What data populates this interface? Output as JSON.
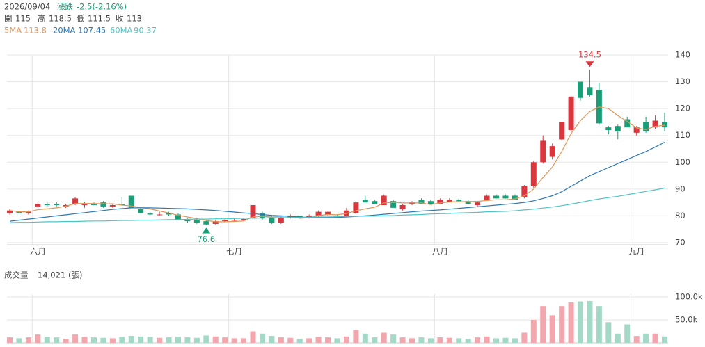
{
  "chart_data": {
    "type": "candlestick",
    "quote": {
      "date": "2026/09/04",
      "change_label": "漲跌",
      "change": "-2.5(-2.16%)",
      "open_label": "開",
      "high_label": "高",
      "low_label": "低",
      "close_label": "收"
    },
    "up_color": "#d9363e",
    "down_color": "#1a9e78",
    "up_volume_color": "#f1a7ad",
    "down_volume_color": "#a3d9c6",
    "categories": [
      null,
      null,
      null,
      "六月",
      null,
      null,
      null,
      null,
      null,
      null,
      null,
      null,
      null,
      null,
      null,
      null,
      null,
      null,
      null,
      null,
      null,
      null,
      null,
      null,
      "七月",
      null,
      null,
      null,
      null,
      null,
      null,
      null,
      null,
      null,
      null,
      null,
      null,
      null,
      null,
      null,
      null,
      null,
      null,
      null,
      null,
      null,
      "八月",
      null,
      null,
      null,
      null,
      null,
      null,
      null,
      null,
      null,
      null,
      null,
      null,
      null,
      null,
      null,
      null,
      null,
      null,
      null,
      null,
      "九月",
      null,
      null,
      null
    ],
    "open": [
      81,
      81.5,
      81,
      83.5,
      84.5,
      84.5,
      83.5,
      84.5,
      84,
      84.5,
      85,
      83.5,
      84.5,
      87.5,
      82.5,
      81,
      80.5,
      81,
      80.5,
      78.5,
      78.5,
      78,
      77,
      78,
      78.2,
      78.3,
      79,
      81,
      79.5,
      77.5,
      79.5,
      80,
      79.5,
      80,
      80.5,
      80,
      79.5,
      81,
      86,
      85.5,
      84,
      85.5,
      82.5,
      84.5,
      86,
      85.5,
      84.5,
      85,
      86,
      85.5,
      84,
      86,
      87.5,
      87.5,
      87.5,
      87,
      91,
      100,
      102,
      108.5,
      112,
      130,
      128,
      127,
      113,
      113.5,
      116,
      111,
      115,
      113,
      115
    ],
    "high": [
      82.5,
      82,
      82,
      85,
      85,
      85,
      84.5,
      87,
      85,
      85,
      85.5,
      84.5,
      87,
      87.5,
      83,
      81.5,
      81.5,
      81.5,
      81,
      79,
      79,
      78.5,
      78.5,
      79,
      79,
      79,
      85,
      81.5,
      80,
      80,
      80.5,
      80,
      80.5,
      82,
      81.5,
      80.5,
      83,
      85.5,
      87.5,
      86,
      88,
      86,
      84.5,
      85.5,
      86.5,
      86,
      86.5,
      86.5,
      86.5,
      86,
      85.5,
      88,
      88,
      88,
      88,
      91.5,
      100.5,
      110,
      107,
      115,
      124.5,
      130,
      134.5,
      129.5,
      113.5,
      114,
      117,
      113.5,
      117,
      117.5,
      118.5
    ],
    "low": [
      80.5,
      80.5,
      80.5,
      83,
      83.5,
      83.5,
      83,
      84,
      83,
      84,
      83,
      83,
      84,
      83,
      81,
      80,
      80,
      80,
      78.5,
      77.5,
      77,
      76.6,
      76.8,
      77.5,
      78,
      78,
      78.5,
      78.5,
      77,
      77,
      79,
      79,
      79,
      79.5,
      80,
      79.5,
      79.5,
      80.5,
      85,
      84.5,
      84,
      83,
      82,
      84,
      84.5,
      84.5,
      84.5,
      85,
      85.5,
      84.5,
      83.5,
      85.5,
      86.5,
      86.5,
      86,
      86.5,
      90.5,
      99.5,
      101,
      108,
      111.5,
      123,
      124.5,
      114,
      110.5,
      108.5,
      113,
      110,
      111,
      112.5,
      111.5
    ],
    "close": [
      82,
      81,
      81.5,
      84.5,
      84,
      84,
      84,
      86.5,
      84.5,
      84,
      83.5,
      84,
      84,
      83,
      81,
      80.5,
      80.5,
      80.5,
      78.5,
      78,
      77.5,
      76.8,
      78,
      78.5,
      78.5,
      78.8,
      84,
      79,
      77.5,
      79.5,
      80,
      79.5,
      80,
      81.5,
      81.5,
      79.5,
      82,
      85,
      85,
      84.5,
      87.5,
      83,
      84,
      85,
      84.5,
      84.5,
      86,
      86,
      85.5,
      84.5,
      85,
      87.5,
      86.5,
      86.5,
      86,
      91,
      100,
      108,
      106,
      115,
      124.5,
      124,
      125,
      114.5,
      112,
      111.5,
      113,
      113,
      111.5,
      115.5,
      113
    ],
    "volume": [
      12,
      10,
      12,
      18,
      13,
      12,
      9,
      18,
      13,
      12,
      11,
      10,
      13,
      15,
      14,
      13,
      11,
      12,
      13,
      12,
      11,
      16,
      14,
      12,
      10,
      10,
      25,
      20,
      15,
      12,
      11,
      9,
      10,
      13,
      12,
      10,
      14,
      28,
      20,
      12,
      22,
      18,
      12,
      10,
      12,
      10,
      12,
      11,
      10,
      9,
      12,
      14,
      10,
      11,
      10,
      22,
      50,
      80,
      60,
      80,
      88,
      90,
      91,
      80,
      45,
      20,
      40,
      15,
      20,
      20,
      14.021
    ],
    "volume_title": "成交量",
    "volume_label": "14,021",
    "volume_unit": "(張)",
    "ma": [
      {
        "name": "5MA",
        "color": "#e0965a",
        "values": [
          82,
          81.5,
          81.5,
          82.3,
          82.6,
          83,
          83.6,
          84.6,
          84.6,
          84.6,
          84.5,
          84.5,
          84,
          83.7,
          83.1,
          82.6,
          81.8,
          81.1,
          80.2,
          79.6,
          79,
          78.3,
          77.8,
          77.8,
          77.9,
          78.1,
          79.6,
          79.8,
          79.6,
          79.8,
          80,
          79.1,
          79.3,
          80.1,
          80.5,
          80.4,
          80.9,
          81.9,
          82.6,
          83.2,
          84.8,
          85,
          84.8,
          84.8,
          84.8,
          84.2,
          84.8,
          85.2,
          85.3,
          85.3,
          85.4,
          85.7,
          86,
          86,
          86.3,
          87.5,
          90,
          94.3,
          98.2,
          104,
          110.7,
          115.5,
          118.9,
          120.6,
          120,
          117.4,
          115.2,
          112.8,
          112.2,
          113.4,
          113.8
        ]
      },
      {
        "name": "20MA",
        "color": "#2b78b5",
        "values": [
          78,
          78.4,
          78.8,
          79.2,
          79.6,
          80,
          80.4,
          80.8,
          81.2,
          81.6,
          82,
          82.4,
          82.7,
          83,
          83,
          83,
          82.9,
          82.8,
          82.7,
          82.6,
          82.4,
          82.2,
          82,
          81.7,
          81.4,
          81.1,
          80.8,
          80.5,
          80.2,
          80,
          79.8,
          79.6,
          79.4,
          79.3,
          79.3,
          79.4,
          79.6,
          79.8,
          80,
          80.3,
          80.6,
          80.9,
          81.2,
          81.5,
          81.8,
          82,
          82.2,
          82.5,
          82.8,
          83.1,
          83.4,
          83.7,
          84,
          84.3,
          84.6,
          85,
          85.6,
          86.5,
          87.5,
          89,
          91,
          93,
          95,
          96.5,
          98,
          99.5,
          101,
          102.5,
          104,
          105.7,
          107.45
        ]
      },
      {
        "name": "60MA",
        "color": "#4fc4c6",
        "values": [
          77.5,
          77.6,
          77.6,
          77.7,
          77.8,
          77.8,
          77.9,
          77.9,
          78,
          78.1,
          78.1,
          78.2,
          78.3,
          78.3,
          78.4,
          78.4,
          78.5,
          78.6,
          78.6,
          78.7,
          78.8,
          78.8,
          78.9,
          78.9,
          79,
          79.1,
          79.1,
          79.2,
          79.3,
          79.3,
          79.4,
          79.4,
          79.5,
          79.6,
          79.6,
          79.7,
          79.8,
          79.8,
          79.9,
          79.9,
          80,
          80.1,
          80.3,
          80.4,
          80.5,
          80.7,
          80.8,
          80.9,
          81.1,
          81.2,
          81.3,
          81.5,
          81.6,
          81.7,
          81.9,
          82.2,
          82.5,
          82.9,
          83.3,
          83.8,
          84.4,
          85,
          85.7,
          86.3,
          86.8,
          87.3,
          87.9,
          88.5,
          89.1,
          89.7,
          90.37
        ]
      }
    ],
    "annotations": [
      {
        "index": 62,
        "value": 134.5,
        "color": "#d9363e",
        "position": "above"
      },
      {
        "index": 21,
        "value": 76.6,
        "color": "#1a9e78",
        "position": "below"
      }
    ],
    "ylim": [
      70,
      140
    ],
    "yticks": [
      70,
      80,
      90,
      100,
      110,
      120,
      130,
      140
    ],
    "volume_ylim": [
      0,
      106
    ],
    "volume_yticks": [
      {
        "value": 50,
        "label": "50.0k"
      },
      {
        "value": 100,
        "label": "100.0k"
      }
    ],
    "grid": true
  }
}
